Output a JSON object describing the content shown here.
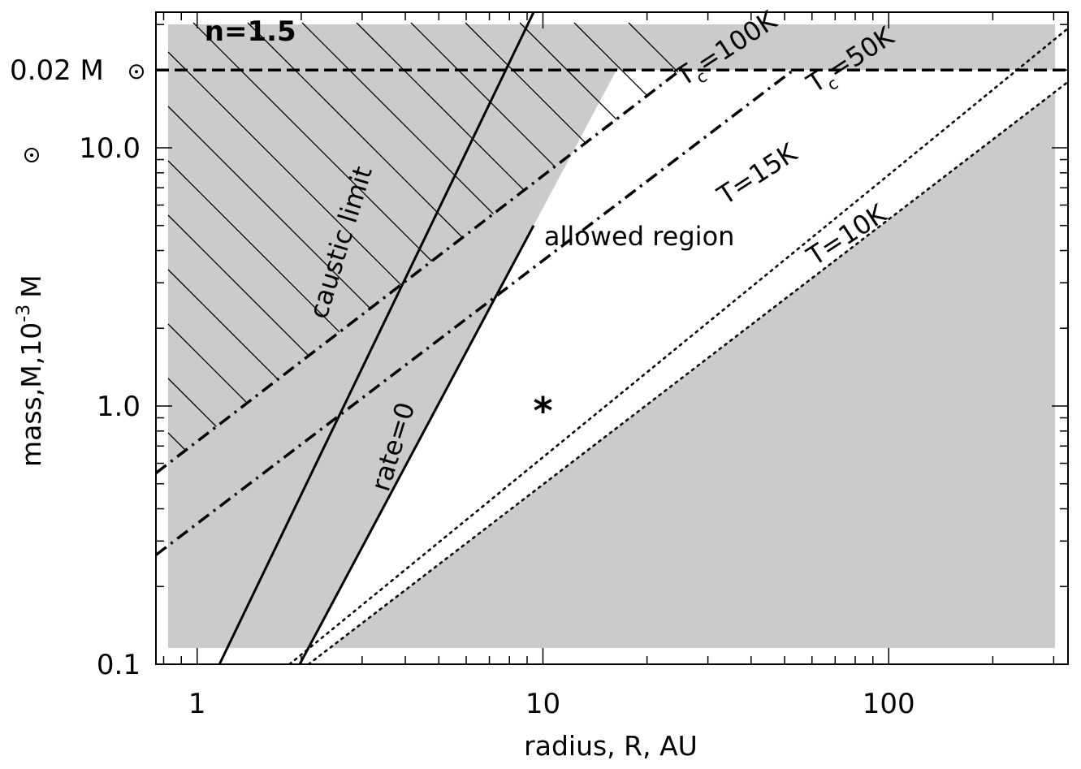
{
  "chart_data": {
    "type": "line",
    "xscale": "log",
    "yscale": "log",
    "xlim": [
      0.76,
      330
    ],
    "ylim": [
      0.1,
      33.5
    ],
    "xlabel": "radius, R, AU",
    "ylabel": "mass,M,10",
    "ylabel_exp": "-3",
    "ylabel_unit": "M",
    "xticks": [
      {
        "value": 1,
        "label": "1"
      },
      {
        "value": 10,
        "label": "10"
      },
      {
        "value": 100,
        "label": "100"
      }
    ],
    "yticks": [
      {
        "value": 0.1,
        "label": "0.1"
      },
      {
        "value": 1.0,
        "label": "1.0"
      },
      {
        "value": 10.0,
        "label": "10.0"
      }
    ],
    "hline": {
      "value": 20.0,
      "label": "0.02 M",
      "style": "dashed"
    },
    "series": [
      {
        "style": "solid",
        "x": [
          1.16,
          9.4
        ],
        "y": [
          0.1,
          33.5
        ]
      },
      {
        "style": "solid",
        "x": [
          1.98,
          9.4
        ],
        "y": [
          0.1,
          5.0
        ]
      },
      {
        "style": "dashdot",
        "x": [
          0.76,
          25.0
        ],
        "y": [
          0.55,
          20.0
        ]
      },
      {
        "style": "dashdot",
        "x": [
          0.76,
          53.0
        ],
        "y": [
          0.265,
          20.0
        ]
      },
      {
        "style": "dotted",
        "x": [
          1.85,
          330
        ],
        "y": [
          0.1,
          29.0
        ]
      },
      {
        "style": "dotted",
        "x": [
          2.1,
          330
        ],
        "y": [
          0.1,
          18.0
        ]
      }
    ],
    "annotations": [
      {
        "text": "n=1.5",
        "x": 1.05,
        "y": 26.0
      },
      {
        "text": "caustic limit",
        "x": 2.75,
        "y": 4.2,
        "rotate": -73
      },
      {
        "text": "rate=0",
        "x": 3.9,
        "y": 0.68,
        "rotate": -73
      },
      {
        "text": "allowed region",
        "x": 19.0,
        "y": 4.2
      },
      {
        "text": "T",
        "sub": "c",
        "rest": "=100K",
        "x": 35.0,
        "y": 22.7,
        "rotate": -33
      },
      {
        "text": "T",
        "sub": "c",
        "rest": "=50K",
        "x": 80.0,
        "y": 20.5,
        "rotate": -33
      },
      {
        "text": "T=15K",
        "x": 43.0,
        "y": 7.4,
        "rotate": -33
      },
      {
        "text": "T=10K",
        "x": 78.0,
        "y": 4.3,
        "rotate": -33
      }
    ],
    "marker": {
      "symbol": "*",
      "x": 10.0,
      "y": 1.0
    },
    "colors": {
      "shade": "#cbcbcb",
      "line": "#000000",
      "background": "#ffffff"
    }
  }
}
